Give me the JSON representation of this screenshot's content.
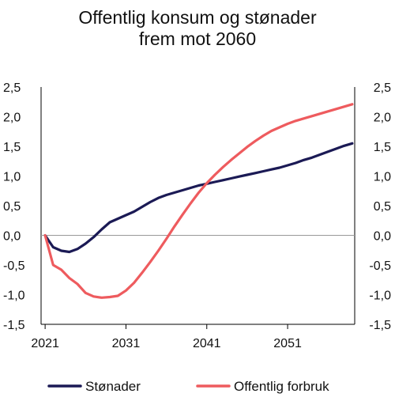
{
  "chart_data": {
    "type": "line",
    "title": "Offentlig konsum og stønader",
    "subtitle": "frem mot 2060",
    "xlabel": "",
    "ylabel": "",
    "xlim": [
      2020.5,
      2059.3
    ],
    "ylim": [
      -1.5,
      2.5
    ],
    "x_ticks": [
      2021,
      2031,
      2041,
      2051
    ],
    "x_tick_labels": [
      "2021",
      "2031",
      "2041",
      "2051"
    ],
    "y_ticks": [
      2.5,
      2.0,
      1.5,
      1.0,
      0.5,
      0.0,
      -0.5,
      -1.0,
      -1.5
    ],
    "y_tick_labels": [
      "2,5",
      "2,0",
      "1,5",
      "1,0",
      "0,5",
      "0,0",
      "-0,5",
      "-1,0",
      "-1,5"
    ],
    "grid": false,
    "zero_line": true,
    "legend_position": "bottom",
    "series": [
      {
        "name": "Stønader",
        "color": "#1b1a55",
        "x": [
          2021,
          2022,
          2023,
          2024,
          2025,
          2026,
          2027,
          2028,
          2029,
          2030,
          2031,
          2032,
          2033,
          2034,
          2035,
          2036,
          2037,
          2038,
          2039,
          2040,
          2041,
          2042,
          2043,
          2044,
          2045,
          2046,
          2047,
          2048,
          2049,
          2050,
          2051,
          2052,
          2053,
          2054,
          2055,
          2056,
          2057,
          2058,
          2059
        ],
        "values": [
          0.0,
          -0.2,
          -0.26,
          -0.28,
          -0.23,
          -0.14,
          -0.03,
          0.1,
          0.22,
          0.28,
          0.34,
          0.4,
          0.48,
          0.56,
          0.63,
          0.68,
          0.72,
          0.76,
          0.8,
          0.84,
          0.87,
          0.9,
          0.93,
          0.96,
          0.99,
          1.02,
          1.05,
          1.08,
          1.11,
          1.14,
          1.18,
          1.22,
          1.27,
          1.31,
          1.36,
          1.41,
          1.46,
          1.51,
          1.55
        ]
      },
      {
        "name": "Offentlig forbruk",
        "color": "#ee5b5e",
        "x": [
          2021,
          2022,
          2023,
          2024,
          2025,
          2026,
          2027,
          2028,
          2029,
          2030,
          2031,
          2032,
          2033,
          2034,
          2035,
          2036,
          2037,
          2038,
          2039,
          2040,
          2041,
          2042,
          2043,
          2044,
          2045,
          2046,
          2047,
          2048,
          2049,
          2050,
          2051,
          2052,
          2053,
          2054,
          2055,
          2056,
          2057,
          2058,
          2059
        ],
        "values": [
          0.0,
          -0.5,
          -0.58,
          -0.72,
          -0.82,
          -0.97,
          -1.03,
          -1.05,
          -1.04,
          -1.02,
          -0.93,
          -0.8,
          -0.63,
          -0.45,
          -0.26,
          -0.06,
          0.15,
          0.35,
          0.54,
          0.72,
          0.88,
          1.02,
          1.15,
          1.27,
          1.38,
          1.49,
          1.59,
          1.68,
          1.76,
          1.82,
          1.88,
          1.93,
          1.97,
          2.01,
          2.05,
          2.09,
          2.13,
          2.17,
          2.21
        ]
      }
    ]
  }
}
